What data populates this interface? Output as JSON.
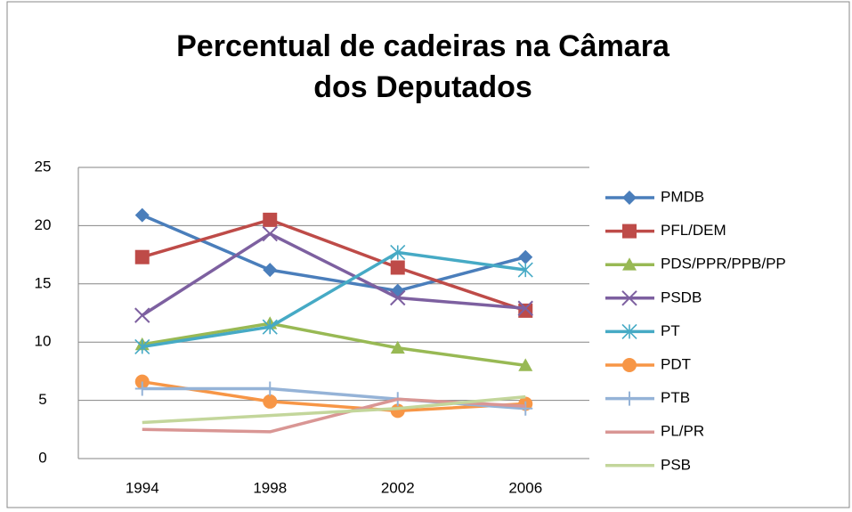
{
  "chart_data": {
    "type": "line",
    "title": [
      "Percentual de cadeiras na Câmara",
      "dos Deputados"
    ],
    "categories": [
      "1994",
      "1998",
      "2002",
      "2006"
    ],
    "series": [
      {
        "name": "PMDB",
        "color": "#4a7ebb",
        "marker": "diamond",
        "values": [
          20.9,
          16.2,
          14.4,
          17.3
        ]
      },
      {
        "name": "PFL/DEM",
        "color": "#be4b48",
        "marker": "square",
        "values": [
          17.3,
          20.5,
          16.4,
          12.7
        ]
      },
      {
        "name": "PDS/PPR/PPB/PP",
        "color": "#98b954",
        "marker": "triangle",
        "values": [
          9.8,
          11.6,
          9.5,
          8.0
        ]
      },
      {
        "name": "PSDB",
        "color": "#7d60a0",
        "marker": "x",
        "values": [
          12.3,
          19.3,
          13.8,
          12.9
        ]
      },
      {
        "name": "PT",
        "color": "#46aac5",
        "marker": "star",
        "values": [
          9.6,
          11.3,
          17.7,
          16.2
        ]
      },
      {
        "name": "PDT",
        "color": "#f79646",
        "marker": "circle",
        "values": [
          6.6,
          4.9,
          4.1,
          4.7
        ]
      },
      {
        "name": "PTB",
        "color": "#95b3d7",
        "marker": "plus",
        "values": [
          6.0,
          6.0,
          5.1,
          4.3
        ]
      },
      {
        "name": "PL/PR",
        "color": "#d99694",
        "marker": "none",
        "values": [
          2.5,
          2.3,
          5.1,
          4.5
        ]
      },
      {
        "name": "PSB",
        "color": "#c3d69b",
        "marker": "none",
        "values": [
          3.1,
          3.7,
          4.3,
          5.3
        ]
      }
    ],
    "ylim": [
      0,
      25
    ],
    "yticks": [
      0,
      5,
      10,
      15,
      20,
      25
    ],
    "grid": true,
    "legend": "right"
  }
}
